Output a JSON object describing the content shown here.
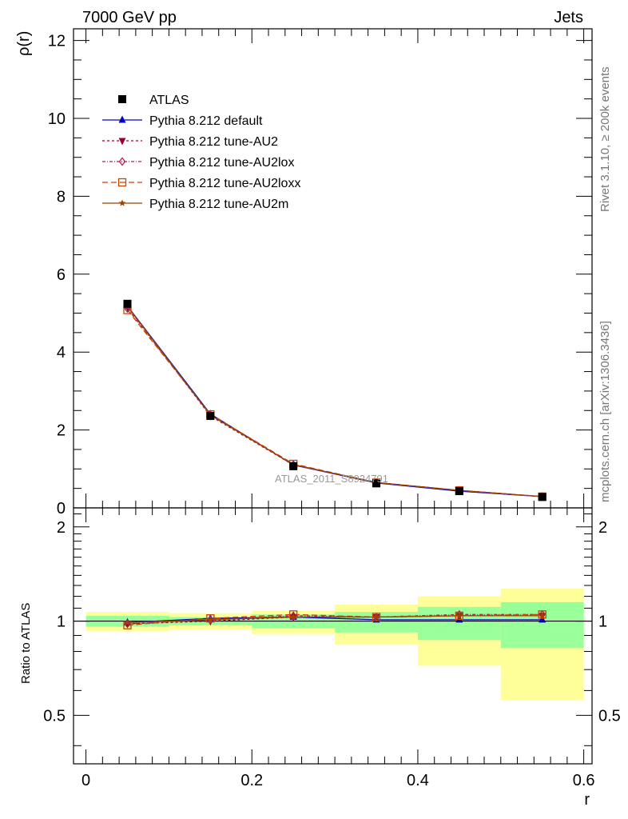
{
  "header": {
    "left_label": "7000 GeV pp",
    "right_label": "Jets"
  },
  "side_labels": {
    "rivet": "Rivet 3.1.10, ≥ 200k events",
    "mcplots": "mcplots.cern.ch [arXiv:1306.3436]"
  },
  "analysis_id": "ATLAS_2011_S8924791",
  "colors": {
    "data": "#000000",
    "default": "#0000cc",
    "au2": "#990033",
    "au2lox": "#aa2255",
    "au2loxx": "#cc4400",
    "au2m": "#994400",
    "band_inner": "#99ff99",
    "band_outer": "#ffff99"
  },
  "chart_data": [
    {
      "type": "line",
      "name": "main",
      "ylabel": "ρ(r)",
      "xlim": [
        -0.015,
        0.61
      ],
      "ylim": [
        0,
        12.3
      ],
      "y_ticks": [
        0,
        2,
        4,
        6,
        8,
        10,
        12
      ],
      "y_tick_labels": [
        "0",
        "2",
        "4",
        "6",
        "8",
        "10",
        "12"
      ],
      "x": [
        0.05,
        0.15,
        0.25,
        0.35,
        0.45,
        0.55
      ],
      "series": [
        {
          "name": "ATLAS",
          "marker": "square",
          "values": [
            5.24,
            2.36,
            1.07,
            0.63,
            0.43,
            0.28
          ]
        },
        {
          "name": "Pythia 8.212 default",
          "marker": "triangle-up",
          "values": [
            5.18,
            2.41,
            1.1,
            0.64,
            0.43,
            0.29
          ]
        },
        {
          "name": "Pythia 8.212 tune-AU2",
          "marker": "triangle-down",
          "values": [
            5.16,
            2.36,
            1.1,
            0.65,
            0.45,
            0.29
          ]
        },
        {
          "name": "Pythia 8.212 tune-AU2lox",
          "marker": "diamond",
          "values": [
            5.12,
            2.39,
            1.11,
            0.65,
            0.45,
            0.29
          ]
        },
        {
          "name": "Pythia 8.212 tune-AU2loxx",
          "marker": "square-open",
          "values": [
            5.08,
            2.4,
            1.13,
            0.65,
            0.45,
            0.29
          ]
        },
        {
          "name": "Pythia 8.212 tune-AU2m",
          "marker": "star",
          "values": [
            5.17,
            2.38,
            1.11,
            0.65,
            0.45,
            0.29
          ]
        }
      ]
    },
    {
      "type": "line",
      "name": "ratio",
      "ylabel": "Ratio to ATLAS",
      "xlabel": "r",
      "ylim": [
        0.35,
        2.3
      ],
      "y_ticks": [
        0.5,
        1,
        2
      ],
      "y_tick_labels": [
        "0.5",
        "1",
        "2"
      ],
      "x_ticks": [
        0,
        0.2,
        0.4,
        0.6
      ],
      "x_tick_labels": [
        "0",
        "0.2",
        "0.4",
        "0.6"
      ],
      "bins": [
        [
          0,
          0.1
        ],
        [
          0.1,
          0.2
        ],
        [
          0.2,
          0.3
        ],
        [
          0.3,
          0.4
        ],
        [
          0.4,
          0.5
        ],
        [
          0.5,
          0.6
        ]
      ],
      "band_inner": [
        [
          0.96,
          1.04
        ],
        [
          0.97,
          1.03
        ],
        [
          0.95,
          1.05
        ],
        [
          0.92,
          1.07
        ],
        [
          0.87,
          1.11
        ],
        [
          0.82,
          1.15
        ]
      ],
      "band_outer": [
        [
          0.93,
          1.07
        ],
        [
          0.94,
          1.06
        ],
        [
          0.91,
          1.08
        ],
        [
          0.84,
          1.13
        ],
        [
          0.72,
          1.2
        ],
        [
          0.56,
          1.27
        ]
      ],
      "x": [
        0.05,
        0.15,
        0.25,
        0.35,
        0.45,
        0.55
      ],
      "series": [
        {
          "name": "Pythia 8.212 default",
          "marker": "triangle-up",
          "values": [
            0.99,
            1.02,
            1.03,
            1.01,
            1.01,
            1.01
          ]
        },
        {
          "name": "Pythia 8.212 tune-AU2",
          "marker": "triangle-down",
          "values": [
            0.98,
            1.0,
            1.03,
            1.03,
            1.04,
            1.04
          ]
        },
        {
          "name": "Pythia 8.212 tune-AU2lox",
          "marker": "diamond",
          "values": [
            0.98,
            1.01,
            1.04,
            1.03,
            1.05,
            1.05
          ]
        },
        {
          "name": "Pythia 8.212 tune-AU2loxx",
          "marker": "square-open",
          "values": [
            0.97,
            1.02,
            1.05,
            1.03,
            1.04,
            1.05
          ]
        },
        {
          "name": "Pythia 8.212 tune-AU2m",
          "marker": "star",
          "values": [
            0.99,
            1.01,
            1.03,
            1.03,
            1.04,
            1.04
          ]
        }
      ]
    }
  ]
}
